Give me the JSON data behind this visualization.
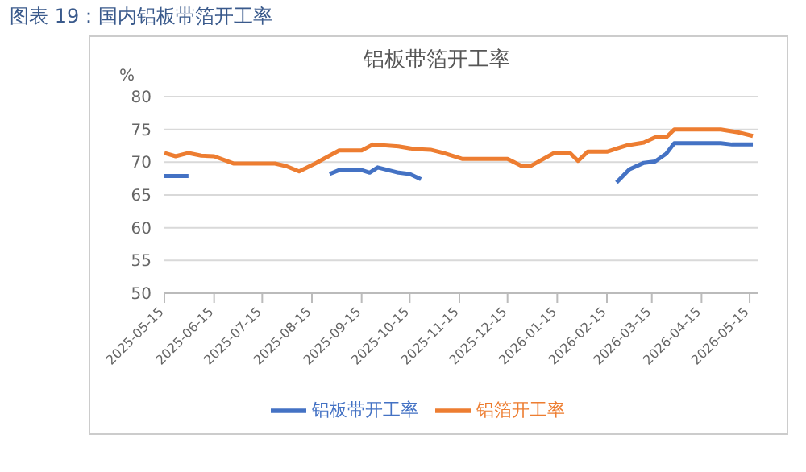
{
  "chart_data": {
    "type": "line",
    "title": "图表 19：国内铝板带箔开工率",
    "subtitle": "铝板带箔开工率",
    "ylabel": "%",
    "xlim": [
      "2025-05-15",
      "2026-05-20"
    ],
    "xticks": [
      "2025-05-15",
      "2025-06-15",
      "2025-07-15",
      "2025-08-15",
      "2025-09-15",
      "2025-10-15",
      "2025-11-15",
      "2025-12-15",
      "2026-01-15",
      "2026-02-15",
      "2026-03-15",
      "2026-04-15",
      "2026-05-15"
    ],
    "ylim": [
      50,
      80
    ],
    "yticks": [
      50,
      55,
      60,
      65,
      70,
      75,
      80
    ],
    "grid": "y",
    "legend": "bottom",
    "marker": "none",
    "line_style": "solid",
    "series": [
      {
        "name": "铝板带开工率",
        "color": "#4472c4",
        "x": [
          "2025-05-15",
          "2025-05-30",
          "2025-06-15",
          "2025-08-26",
          "2025-09-01",
          "2025-09-15",
          "2025-09-20",
          "2025-09-25",
          "2025-10-08",
          "2025-10-15",
          "2025-10-22",
          "2025-11-15",
          "2026-02-21",
          "2026-03-01",
          "2026-03-10",
          "2026-03-17",
          "2026-03-24",
          "2026-03-29",
          "2026-04-27",
          "2026-05-04",
          "2026-05-17"
        ],
        "values": [
          67.9,
          67.9,
          null,
          68.2,
          68.8,
          68.8,
          68.4,
          69.2,
          68.4,
          68.2,
          67.4,
          null,
          66.9,
          68.9,
          69.9,
          70.1,
          71.3,
          72.9,
          72.9,
          72.7,
          72.7
        ]
      },
      {
        "name": "铝箔开工率",
        "color": "#ed7d31",
        "x": [
          "2025-05-15",
          "2025-05-22",
          "2025-05-30",
          "2025-06-07",
          "2025-06-15",
          "2025-06-27",
          "2025-07-23",
          "2025-07-30",
          "2025-08-07",
          "2025-08-17",
          "2025-09-01",
          "2025-09-15",
          "2025-09-22",
          "2025-10-08",
          "2025-10-18",
          "2025-10-28",
          "2025-11-05",
          "2025-11-17",
          "2025-12-15",
          "2025-12-24",
          "2025-12-30",
          "2026-01-13",
          "2026-01-23",
          "2026-01-28",
          "2026-02-03",
          "2026-02-15",
          "2026-02-28",
          "2026-03-10",
          "2026-03-17",
          "2026-03-24",
          "2026-03-29",
          "2026-04-27",
          "2026-05-07",
          "2026-05-17"
        ],
        "values": [
          71.4,
          70.9,
          71.4,
          71.0,
          70.9,
          69.8,
          69.8,
          69.4,
          68.6,
          69.8,
          71.8,
          71.8,
          72.7,
          72.4,
          72.0,
          71.9,
          71.4,
          70.5,
          70.5,
          69.4,
          69.5,
          71.4,
          71.4,
          70.2,
          71.6,
          71.6,
          72.6,
          73.0,
          73.8,
          73.8,
          75.0,
          75.0,
          74.6,
          74.0
        ]
      }
    ]
  }
}
